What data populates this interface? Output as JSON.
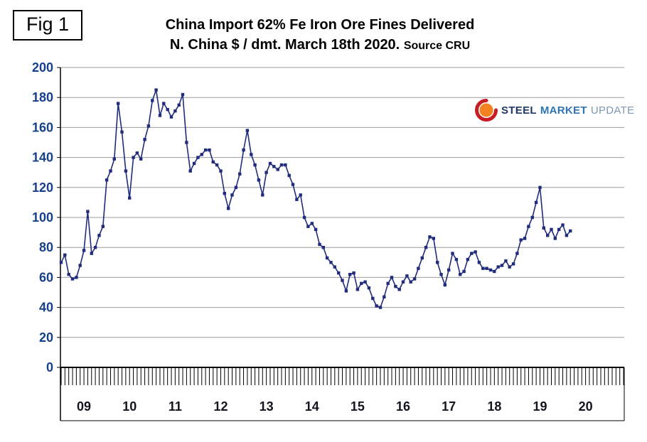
{
  "figure": {
    "label": "Fig 1"
  },
  "title": {
    "line1": "China Import 62% Fe Iron Ore Fines Delivered",
    "line2": "N. China $ / dmt. March 18th 2020.",
    "source": "Source CRU"
  },
  "logo": {
    "word1": "STEEL",
    "word2": "MARKET",
    "word3": "UPDATE",
    "word1_color": "#1F3864",
    "word2_color": "#2E74B5",
    "word3_color": "#7C98B3",
    "icon": "red-orange-swoosh-circle",
    "icon_circle_color": "#F58220",
    "icon_swoosh_color": "#C81D25"
  },
  "chart_data": {
    "type": "line",
    "title": "China Import 62% Fe Iron Ore Fines Delivered N. China $ / dmt. March 18th 2020. Source CRU",
    "xlabel": "",
    "ylabel": "$ / dmt",
    "ylim": [
      0,
      200
    ],
    "y_tick_step": 20,
    "y_tick_labels": [
      "200",
      "180",
      "160",
      "140",
      "120",
      "100",
      "80",
      "60",
      "40",
      "20",
      "0"
    ],
    "x_year_labels": [
      "09",
      "10",
      "11",
      "12",
      "13",
      "14",
      "15",
      "16",
      "17",
      "18",
      "19",
      "20"
    ],
    "frequency": "monthly",
    "start": "2009-01",
    "end": "2020-03",
    "grid": true,
    "legend_position": "none",
    "line_color": "#212C7C",
    "marker": "square",
    "grid_color": "#9b9b9b",
    "series": [
      {
        "name": "China import 62% Fe iron ore fines, delivered N. China ($/dmt)",
        "values": [
          70,
          75,
          62,
          59,
          60,
          68,
          78,
          104,
          76,
          80,
          88,
          94,
          125,
          131,
          139,
          176,
          157,
          131,
          113,
          140,
          143,
          139,
          152,
          161,
          178,
          185,
          168,
          176,
          172,
          167,
          171,
          175,
          182,
          150,
          131,
          136,
          140,
          142,
          145,
          145,
          137,
          135,
          131,
          116,
          106,
          115,
          120,
          129,
          145,
          158,
          142,
          135,
          125,
          115,
          130,
          136,
          134,
          132,
          135,
          135,
          128,
          122,
          112,
          115,
          100,
          94,
          96,
          92,
          82,
          80,
          73,
          70,
          67,
          63,
          58,
          51,
          62,
          63,
          52,
          56,
          57,
          53,
          46,
          41,
          40,
          47,
          56,
          60,
          54,
          52,
          57,
          61,
          57,
          59,
          66,
          73,
          80,
          87,
          86,
          70,
          62,
          55,
          65,
          76,
          72,
          62,
          64,
          72,
          76,
          77,
          70,
          66,
          66,
          65,
          64,
          67,
          68,
          71,
          67,
          69,
          76,
          85,
          86,
          94,
          100,
          110,
          120,
          93,
          88,
          92,
          86,
          92,
          95,
          88,
          91
        ]
      }
    ]
  },
  "axis_colors": {
    "y_labels": "#17408B",
    "x_labels": "#14141e"
  }
}
